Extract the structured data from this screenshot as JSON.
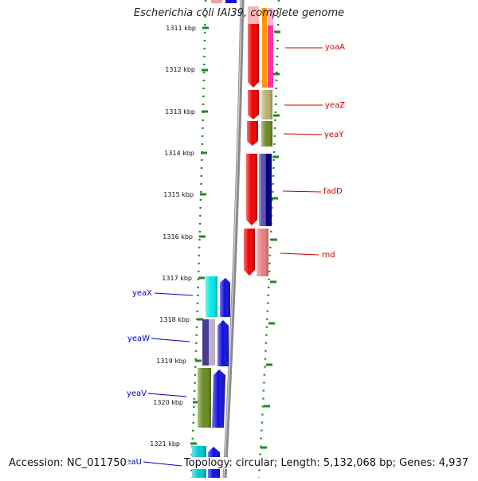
{
  "title": "Escherichia coli IAI39, complete genome",
  "accession": "Accession: NC_011750",
  "topology": "Topology: circular; Length: 5,132,068 bp; Genes: 4,937",
  "colors": {
    "scale_dots": "#1f8a1f",
    "backbone": "#8a8a8a",
    "forward_label": "#cc0000",
    "reverse_label": "#0000cc"
  },
  "scale_labels": [
    "1311 kbp",
    "1312 kbp",
    "1313 kbp",
    "1314 kbp",
    "1315 kbp",
    "1316 kbp",
    "1317 kbp",
    "1318 kbp",
    "1319 kbp",
    "1320 kbp",
    "1321 kbp"
  ],
  "genes": [
    {
      "name": "yoaA",
      "strand": "forward"
    },
    {
      "name": "yeaZ",
      "strand": "forward"
    },
    {
      "name": "yeaY",
      "strand": "forward"
    },
    {
      "name": "fadD",
      "strand": "forward"
    },
    {
      "name": "rnd",
      "strand": "forward"
    },
    {
      "name": "yeaX",
      "strand": "reverse"
    },
    {
      "name": "yeaW",
      "strand": "reverse"
    },
    {
      "name": "yeaV",
      "strand": "reverse"
    },
    {
      "name": "yeaU",
      "strand": "reverse"
    }
  ]
}
